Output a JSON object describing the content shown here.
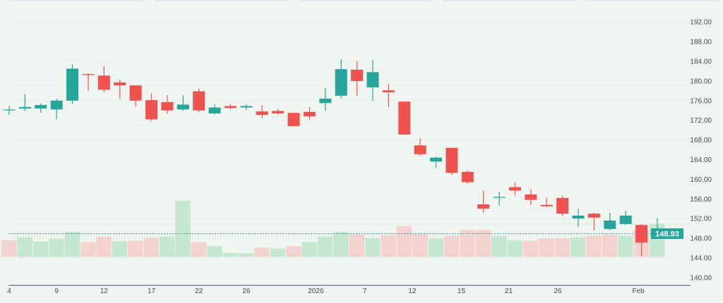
{
  "chart_data": {
    "type": "candlestick",
    "title": "",
    "xlabel": "",
    "ylabel": "",
    "ylim": [
      140,
      192
    ],
    "y_ticks": [
      "140.00",
      "144.00",
      "148.00",
      "152.00",
      "156.00",
      "160.00",
      "164.00",
      "168.00",
      "172.00",
      "176.00",
      "180.00",
      "184.00",
      "188.00",
      "192.00"
    ],
    "x_ticks": [
      {
        "label": "4",
        "index": 0
      },
      {
        "label": "9",
        "index": 3
      },
      {
        "label": "12",
        "index": 6
      },
      {
        "label": "17",
        "index": 9
      },
      {
        "label": "22",
        "index": 12
      },
      {
        "label": "26",
        "index": 15
      },
      {
        "label": "2026",
        "index": 19.4
      },
      {
        "label": "7",
        "index": 22.5
      },
      {
        "label": "12",
        "index": 25.5
      },
      {
        "label": "15",
        "index": 28.6
      },
      {
        "label": "21",
        "index": 31.6
      },
      {
        "label": "26",
        "index": 34.7
      },
      {
        "label": "Feb",
        "index": 39.8
      }
    ],
    "ohlc": [
      [
        174.2,
        174.9,
        173.1,
        174.2
      ],
      [
        174.4,
        177.3,
        173.9,
        174.7
      ],
      [
        174.4,
        175.4,
        173.5,
        175.1
      ],
      [
        174.2,
        176.4,
        172.2,
        176.0
      ],
      [
        176.0,
        183.4,
        175.3,
        182.5
      ],
      [
        181.4,
        181.6,
        178.0,
        181.2
      ],
      [
        181.1,
        183.0,
        177.7,
        178.2
      ],
      [
        179.7,
        180.3,
        176.4,
        179.1
      ],
      [
        179.1,
        179.1,
        174.8,
        176.0
      ],
      [
        176.1,
        177.5,
        171.9,
        172.2
      ],
      [
        175.7,
        177.1,
        173.3,
        174.0
      ],
      [
        174.2,
        177.1,
        173.9,
        175.2
      ],
      [
        177.9,
        178.4,
        173.7,
        174.0
      ],
      [
        173.4,
        175.2,
        173.2,
        174.6
      ],
      [
        174.9,
        175.3,
        174.2,
        174.5
      ],
      [
        174.6,
        175.2,
        174.1,
        174.9
      ],
      [
        173.8,
        175.1,
        172.4,
        173.1
      ],
      [
        173.9,
        174.3,
        173.2,
        173.4
      ],
      [
        173.5,
        173.6,
        170.8,
        170.8
      ],
      [
        173.7,
        174.7,
        172.1,
        172.8
      ],
      [
        175.5,
        178.6,
        173.9,
        176.4
      ],
      [
        177.0,
        184.4,
        176.4,
        182.4
      ],
      [
        182.3,
        184.0,
        177.0,
        180.0
      ],
      [
        178.7,
        184.3,
        176.0,
        181.8
      ],
      [
        178.1,
        179.4,
        174.7,
        177.7
      ],
      [
        175.8,
        175.8,
        169.1,
        169.1
      ],
      [
        166.9,
        168.3,
        164.8,
        165.1
      ],
      [
        163.6,
        164.6,
        162.3,
        164.4
      ],
      [
        166.4,
        166.4,
        160.9,
        161.3
      ],
      [
        161.5,
        161.8,
        159.1,
        159.4
      ],
      [
        154.9,
        157.7,
        153.2,
        154.0
      ],
      [
        156.3,
        157.5,
        154.6,
        156.4
      ],
      [
        158.4,
        159.4,
        156.7,
        157.7
      ],
      [
        156.9,
        158.0,
        154.8,
        155.8
      ],
      [
        154.8,
        156.2,
        154.3,
        154.5
      ],
      [
        156.2,
        156.7,
        152.6,
        153.0
      ],
      [
        152.0,
        154.0,
        150.3,
        152.6
      ],
      [
        153.0,
        153.2,
        149.6,
        152.2
      ],
      [
        149.9,
        153.1,
        149.6,
        151.6
      ],
      [
        150.9,
        153.6,
        150.7,
        152.6
      ],
      [
        150.7,
        150.9,
        144.3,
        147.1
      ],
      [
        148.85,
        152.1,
        148.1,
        148.93
      ]
    ],
    "ohlc_fields": [
      "open",
      "high",
      "low",
      "close"
    ],
    "volume_relative": [
      23.7,
      27.7,
      21.7,
      25.3,
      35.3,
      20.7,
      28.7,
      22.3,
      23,
      27.3,
      28.7,
      79.7,
      20.7,
      15.3,
      5.7,
      5,
      13,
      11.7,
      15,
      20.7,
      28.7,
      35.3,
      32,
      26.7,
      30.7,
      43.7,
      32.3,
      26,
      29.7,
      38,
      38,
      29.7,
      23.7,
      23,
      26,
      26.7,
      27.7,
      29.7,
      31,
      29.7,
      38,
      46.7
    ],
    "volume_direction": [
      "down",
      "up",
      "up",
      "up",
      "up",
      "down",
      "down",
      "up",
      "down",
      "down",
      "up",
      "up",
      "down",
      "up",
      "up",
      "up",
      "down",
      "up",
      "down",
      "up",
      "up",
      "up",
      "down",
      "up",
      "down",
      "down",
      "down",
      "up",
      "down",
      "down",
      "down",
      "up",
      "up",
      "down",
      "down",
      "down",
      "up",
      "down",
      "down",
      "up",
      "down",
      "up"
    ],
    "last_price": "148.93",
    "grid": true,
    "colors": {
      "up": "#26a69a",
      "down": "#ef5350",
      "vol_up": "#c5e6d1",
      "vol_down": "#f2d3d0",
      "background": "#f1f5f1"
    }
  }
}
